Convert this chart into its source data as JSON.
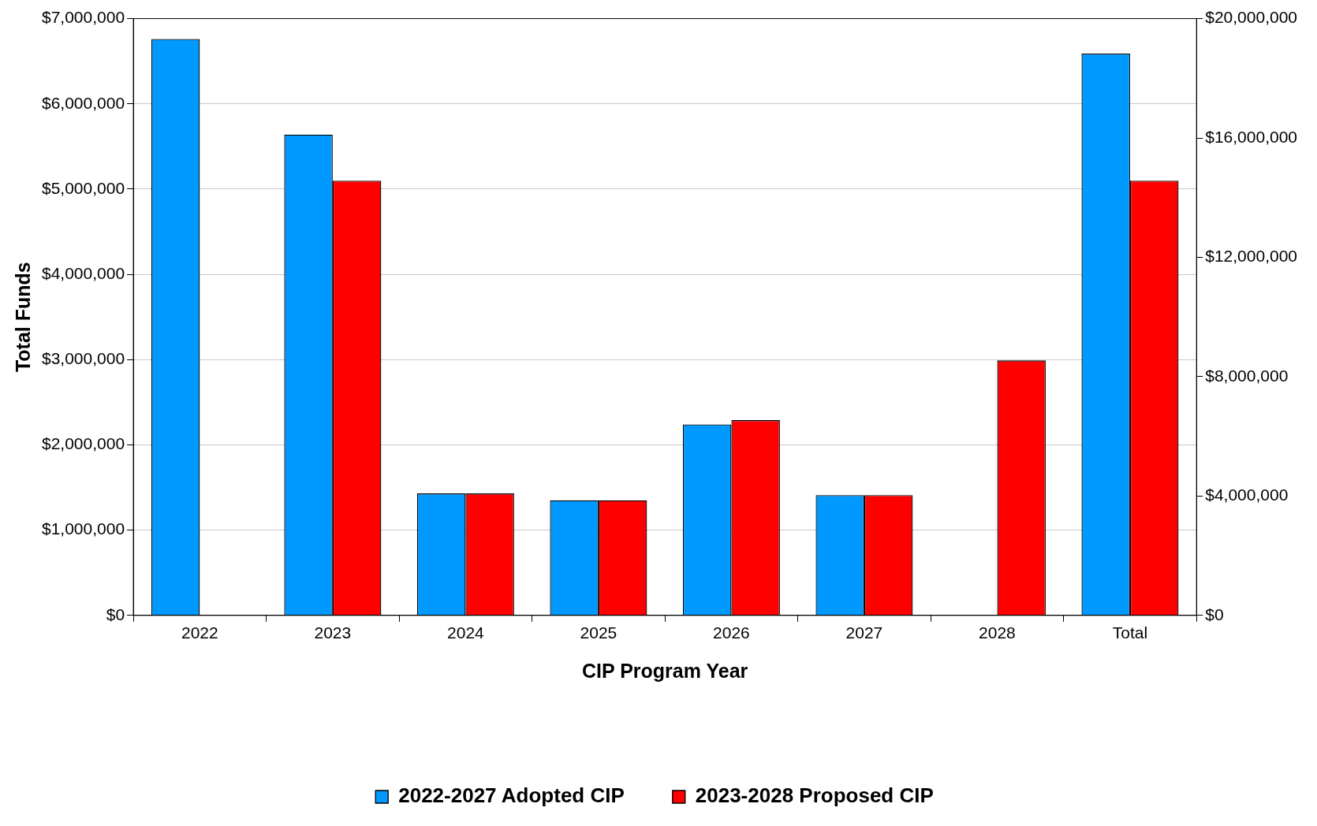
{
  "chart_data": {
    "type": "bar",
    "xlabel": "CIP Program Year",
    "ylabel": "Total Funds",
    "categories": [
      "2022",
      "2023",
      "2024",
      "2025",
      "2026",
      "2027",
      "2028",
      "Total"
    ],
    "series": [
      {
        "name": "2022-2027 Adopted CIP",
        "color": "#0099ff",
        "values": [
          6760000,
          5640000,
          1430000,
          1350000,
          2240000,
          1410000,
          null,
          null
        ]
      },
      {
        "name": "2023-2028 Proposed CIP",
        "color": "#ff0000",
        "values": [
          null,
          5100000,
          1430000,
          1350000,
          2290000,
          1410000,
          2990000,
          null
        ]
      },
      {
        "color": "#0099ff",
        "axis": "y2",
        "values": [
          null,
          null,
          null,
          null,
          null,
          null,
          null,
          18830000
        ]
      },
      {
        "color": "#ff0000",
        "axis": "y2",
        "values": [
          null,
          null,
          null,
          null,
          null,
          null,
          null,
          14570000
        ]
      }
    ],
    "ylim": [
      0,
      7000000
    ],
    "yticks": [
      {
        "value": 0,
        "label": "$0"
      },
      {
        "value": 1000000,
        "label": "$1,000,000"
      },
      {
        "value": 2000000,
        "label": "$2,000,000"
      },
      {
        "value": 3000000,
        "label": "$3,000,000"
      },
      {
        "value": 4000000,
        "label": "$4,000,000"
      },
      {
        "value": 5000000,
        "label": "$5,000,000"
      },
      {
        "value": 6000000,
        "label": "$6,000,000"
      },
      {
        "value": 7000000,
        "label": "$7,000,000"
      }
    ],
    "y2lim": [
      0,
      20000000
    ],
    "y2ticks": [
      {
        "value": 0,
        "label": "$0"
      },
      {
        "value": 4000000,
        "label": "$4,000,000"
      },
      {
        "value": 8000000,
        "label": "$8,000,000"
      },
      {
        "value": 12000000,
        "label": "$12,000,000"
      },
      {
        "value": 16000000,
        "label": "$16,000,000"
      },
      {
        "value": 20000000,
        "label": "$20,000,000"
      }
    ],
    "grid": "y",
    "legend": "bottom"
  }
}
